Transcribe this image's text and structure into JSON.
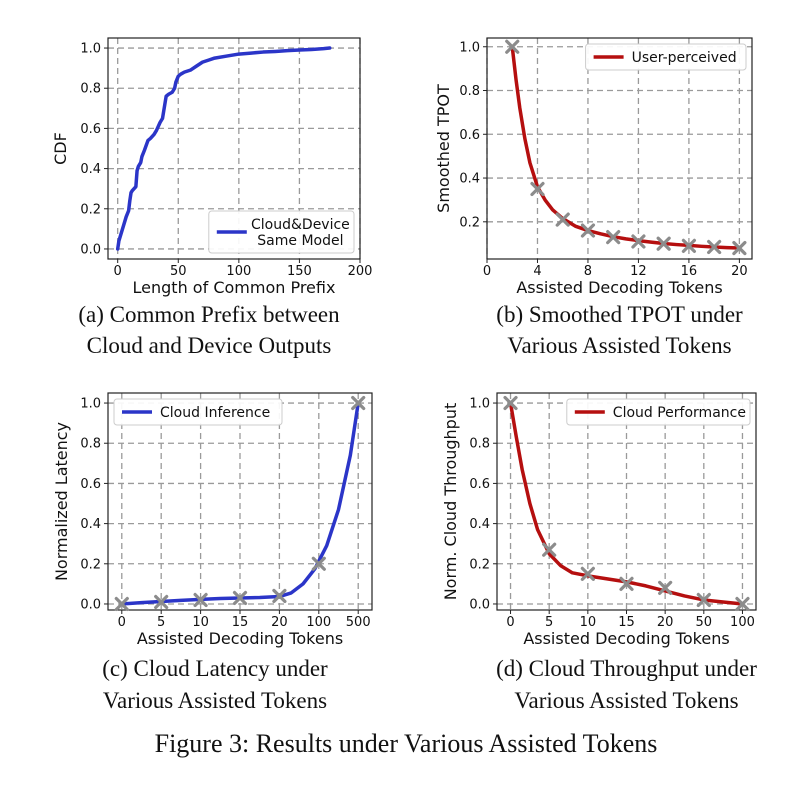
{
  "figure_caption": "Figure 3: Results under Various Assisted Tokens",
  "chart_data": [
    {
      "id": "a",
      "type": "line",
      "caption_lines": [
        "(a) Common Prefix between",
        "Cloud and Device Outputs"
      ],
      "xlabel": "Length of Common Prefix",
      "ylabel": "CDF",
      "xlim": [
        -8,
        200
      ],
      "ylim": [
        -0.05,
        1.05
      ],
      "xticks": [
        0,
        50,
        100,
        150,
        200
      ],
      "xtick_labels": [
        "0",
        "50",
        "100",
        "150",
        "200"
      ],
      "yticks": [
        0.0,
        0.2,
        0.4,
        0.6,
        0.8,
        1.0
      ],
      "ytick_labels": [
        "0.0",
        "0.2",
        "0.4",
        "0.6",
        "0.8",
        "1.0"
      ],
      "grid": true,
      "legend_position": "lower-right",
      "series": [
        {
          "name_lines": [
            "Cloud&Device",
            "Same Model"
          ],
          "color": "#2b35c8",
          "markers": false,
          "x": [
            0,
            1,
            3,
            5,
            7,
            9,
            10,
            11,
            12,
            15,
            16,
            17,
            19,
            20,
            22,
            25,
            27,
            30,
            32,
            35,
            37,
            40,
            42,
            45,
            47,
            48,
            50,
            52,
            55,
            60,
            65,
            70,
            75,
            80,
            90,
            100,
            110,
            120,
            130,
            140,
            150,
            160,
            170,
            175
          ],
          "y": [
            0.0,
            0.04,
            0.08,
            0.12,
            0.16,
            0.19,
            0.24,
            0.28,
            0.29,
            0.31,
            0.39,
            0.41,
            0.43,
            0.46,
            0.49,
            0.54,
            0.55,
            0.57,
            0.59,
            0.63,
            0.65,
            0.76,
            0.77,
            0.78,
            0.8,
            0.83,
            0.86,
            0.87,
            0.88,
            0.89,
            0.91,
            0.93,
            0.94,
            0.95,
            0.96,
            0.97,
            0.975,
            0.98,
            0.983,
            0.987,
            0.99,
            0.993,
            0.997,
            1.0
          ]
        }
      ]
    },
    {
      "id": "b",
      "type": "line",
      "caption_lines": [
        "(b) Smoothed TPOT under",
        "Various Assisted Tokens"
      ],
      "xlabel": "Assisted Decoding Tokens",
      "ylabel": "Smoothed TPOT",
      "xlim": [
        0,
        21
      ],
      "ylim": [
        0.03,
        1.04
      ],
      "xticks": [
        0,
        4,
        8,
        12,
        16,
        20
      ],
      "xtick_labels": [
        "0",
        "4",
        "8",
        "12",
        "16",
        "20"
      ],
      "yticks": [
        0.2,
        0.4,
        0.6,
        0.8,
        1.0
      ],
      "ytick_labels": [
        "0.2",
        "0.4",
        "0.6",
        "0.8",
        "1.0"
      ],
      "grid": true,
      "legend_position": "upper-right",
      "series": [
        {
          "name_lines": [
            "User-perceived"
          ],
          "color": "#b50f0f",
          "markers": true,
          "x": [
            2,
            4,
            6,
            8,
            10,
            12,
            14,
            16,
            18,
            20
          ],
          "y": [
            1.0,
            0.35,
            0.21,
            0.16,
            0.13,
            0.11,
            0.1,
            0.09,
            0.085,
            0.08
          ],
          "curve_x": [
            2,
            2.3,
            2.6,
            3,
            3.4,
            4,
            4.6,
            5.2,
            6,
            7,
            8,
            9,
            10,
            11,
            12,
            13,
            14,
            15,
            16,
            17,
            18,
            19,
            20
          ],
          "curve_y": [
            1.0,
            0.85,
            0.72,
            0.58,
            0.47,
            0.36,
            0.3,
            0.255,
            0.215,
            0.18,
            0.16,
            0.145,
            0.132,
            0.122,
            0.114,
            0.107,
            0.101,
            0.096,
            0.092,
            0.088,
            0.085,
            0.082,
            0.08
          ]
        }
      ]
    },
    {
      "id": "c",
      "type": "line",
      "caption_lines": [
        "(c) Cloud Latency under",
        "Various Assisted Tokens"
      ],
      "xlabel": "Assisted Decoding Tokens",
      "ylabel": "Normalized Latency",
      "xlim": [
        -0.35,
        6.35
      ],
      "ylim": [
        -0.03,
        1.05
      ],
      "xticks": [
        0,
        1,
        2,
        3,
        4,
        5,
        6
      ],
      "xtick_labels": [
        "0",
        "5",
        "10",
        "15",
        "20",
        "100",
        "500"
      ],
      "yticks": [
        0.0,
        0.2,
        0.4,
        0.6,
        0.8,
        1.0
      ],
      "ytick_labels": [
        "0.0",
        "0.2",
        "0.4",
        "0.6",
        "0.8",
        "1.0"
      ],
      "grid": true,
      "legend_position": "upper-left",
      "series": [
        {
          "name_lines": [
            "Cloud Inference"
          ],
          "color": "#2b35c8",
          "markers": true,
          "x": [
            0,
            1,
            2,
            3,
            4,
            5,
            6
          ],
          "y": [
            0.0,
            0.01,
            0.02,
            0.03,
            0.04,
            0.2,
            1.0
          ],
          "curve_x": [
            0,
            0.5,
            1,
            1.5,
            2,
            2.5,
            3,
            3.5,
            4,
            4.3,
            4.6,
            4.9,
            5.2,
            5.5,
            5.8,
            6
          ],
          "curve_y": [
            0.0,
            0.007,
            0.012,
            0.018,
            0.023,
            0.027,
            0.03,
            0.032,
            0.037,
            0.055,
            0.1,
            0.175,
            0.29,
            0.47,
            0.74,
            1.0
          ]
        }
      ]
    },
    {
      "id": "d",
      "type": "line",
      "caption_lines": [
        "(d) Cloud Throughput under",
        "Various Assisted Tokens"
      ],
      "xlabel": "Assisted Decoding Tokens",
      "ylabel": "Norm. Cloud Throughput",
      "xlim": [
        -0.35,
        6.35
      ],
      "ylim": [
        -0.03,
        1.05
      ],
      "xticks": [
        0,
        1,
        2,
        3,
        4,
        5,
        6
      ],
      "xtick_labels": [
        "0",
        "5",
        "10",
        "15",
        "20",
        "50",
        "100"
      ],
      "yticks": [
        0.0,
        0.2,
        0.4,
        0.6,
        0.8,
        1.0
      ],
      "ytick_labels": [
        "0.0",
        "0.2",
        "0.4",
        "0.6",
        "0.8",
        "1.0"
      ],
      "grid": true,
      "legend_position": "upper-right",
      "series": [
        {
          "name_lines": [
            "Cloud Performance"
          ],
          "color": "#b50f0f",
          "markers": true,
          "x": [
            0,
            1,
            2,
            3,
            4,
            5,
            6
          ],
          "y": [
            1.0,
            0.27,
            0.15,
            0.1,
            0.08,
            0.02,
            0.0
          ],
          "curve_x": [
            0,
            0.15,
            0.3,
            0.5,
            0.7,
            1,
            1.3,
            1.6,
            2,
            2.5,
            3,
            3.5,
            4,
            4.5,
            5,
            5.5,
            6
          ],
          "curve_y": [
            1.0,
            0.83,
            0.67,
            0.5,
            0.37,
            0.25,
            0.19,
            0.155,
            0.14,
            0.125,
            0.11,
            0.09,
            0.065,
            0.04,
            0.02,
            0.01,
            0.0
          ]
        }
      ]
    }
  ]
}
